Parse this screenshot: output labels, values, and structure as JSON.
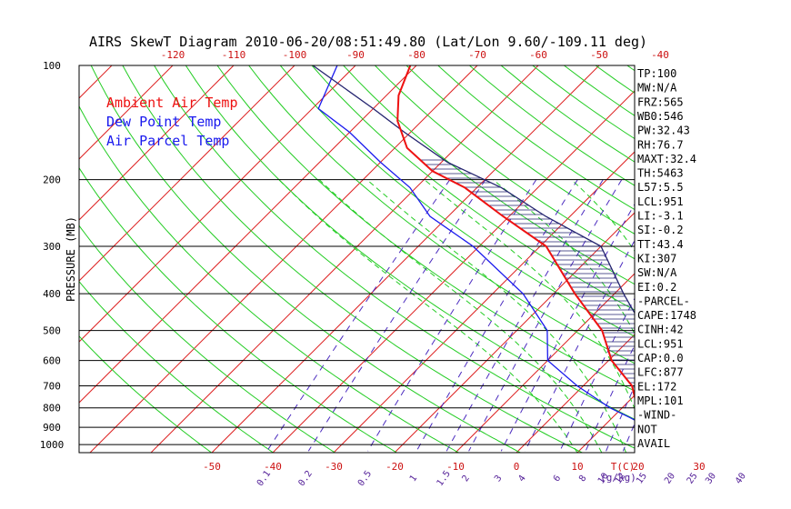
{
  "chart_data": {
    "type": "skewt",
    "title": "AIRS SkewT Diagram 2010-06-20/08:51:49.80 (Lat/Lon 9.60/-109.11 deg)",
    "ylabel": "PRESSURE (MB)",
    "pressure_ticks": [
      "100",
      "200",
      "300",
      "400",
      "500",
      "600",
      "700",
      "800",
      "900",
      "1000"
    ],
    "pressure_levels": [
      100,
      200,
      300,
      400,
      500,
      600,
      700,
      800,
      900,
      1000
    ],
    "top_temp_ticks": [
      "-120",
      "-110",
      "-100",
      "-90",
      "-80",
      "-70",
      "-60",
      "-50",
      "-40"
    ],
    "bottom_temp_ticks": [
      "-50",
      "-40",
      "-30",
      "-20",
      "-10",
      "0",
      "10",
      "20",
      "30"
    ],
    "bottom_temp_unit": "T(C)",
    "mixing_ratio_ticks": [
      "0.1",
      "0.2",
      "0.5",
      "1",
      "1.5",
      "2",
      "3",
      "4",
      "6",
      "8",
      "10",
      "12",
      "15",
      "20",
      "25",
      "30",
      "40"
    ],
    "mixing_ratio_unit": "(g/kg)",
    "legend": [
      {
        "label": "Ambient Air Temp",
        "color": "#ee1111"
      },
      {
        "label": "Dew Point Temp",
        "color": "#1a1aee"
      },
      {
        "label": "Air Parcel Temp",
        "color": "#1a1aee"
      }
    ],
    "colors": {
      "ambient": "#ee1111",
      "dewpoint": "#1a1aee",
      "parcel": "#23236f",
      "isotherm": "#dd2222",
      "dry_adiabat": "#22cc22",
      "moist_adiabat": "#22cc22",
      "mixing_ratio": "#4b2bbf",
      "tick_red": "#cc1111",
      "tick_purple": "#552299"
    },
    "ambient_temp": [
      [
        1010,
        27
      ],
      [
        950,
        22.5
      ],
      [
        900,
        18.5
      ],
      [
        850,
        16
      ],
      [
        800,
        12.5
      ],
      [
        700,
        8
      ],
      [
        600,
        0.5
      ],
      [
        500,
        -6
      ],
      [
        400,
        -16.5
      ],
      [
        300,
        -29
      ],
      [
        250,
        -41
      ],
      [
        210,
        -52
      ],
      [
        190,
        -60
      ],
      [
        165,
        -68
      ],
      [
        140,
        -74
      ],
      [
        120,
        -78
      ],
      [
        100,
        -81
      ]
    ],
    "dew_point": [
      [
        1010,
        22.5
      ],
      [
        950,
        21.5
      ],
      [
        900,
        17.5
      ],
      [
        850,
        13
      ],
      [
        800,
        8
      ],
      [
        700,
        -1
      ],
      [
        600,
        -10
      ],
      [
        500,
        -15
      ],
      [
        400,
        -25
      ],
      [
        300,
        -41
      ],
      [
        250,
        -53
      ],
      [
        210,
        -61
      ],
      [
        180,
        -70
      ],
      [
        150,
        -80
      ],
      [
        130,
        -89
      ],
      [
        100,
        -93
      ]
    ],
    "parcel_temp": [
      [
        1010,
        27
      ],
      [
        950,
        22.5
      ],
      [
        900,
        21
      ],
      [
        850,
        19
      ],
      [
        800,
        17.5
      ],
      [
        700,
        14
      ],
      [
        600,
        7.5
      ],
      [
        500,
        1
      ],
      [
        400,
        -8.5
      ],
      [
        300,
        -20
      ],
      [
        250,
        -34
      ],
      [
        210,
        -46
      ],
      [
        180,
        -59
      ],
      [
        150,
        -71
      ],
      [
        130,
        -80
      ],
      [
        100,
        -97
      ]
    ],
    "indices": [
      "TP:100",
      "MW:N/A",
      "FRZ:565",
      "WB0:546",
      "PW:32.43",
      "RH:76.7",
      "MAXT:32.4",
      "TH:5463",
      "L57:5.5",
      "LCL:951",
      "LI:-3.1",
      "SI:-0.2",
      "TT:43.4",
      "KI:307",
      "SW:N/A",
      "EI:0.2",
      "-PARCEL-",
      "CAPE:1748",
      "CINH:42",
      "LCL:951",
      "CAP:0.0",
      "LFC:877",
      "EL:172",
      "MPL:101",
      "-WIND-",
      "NOT",
      "AVAIL"
    ]
  }
}
